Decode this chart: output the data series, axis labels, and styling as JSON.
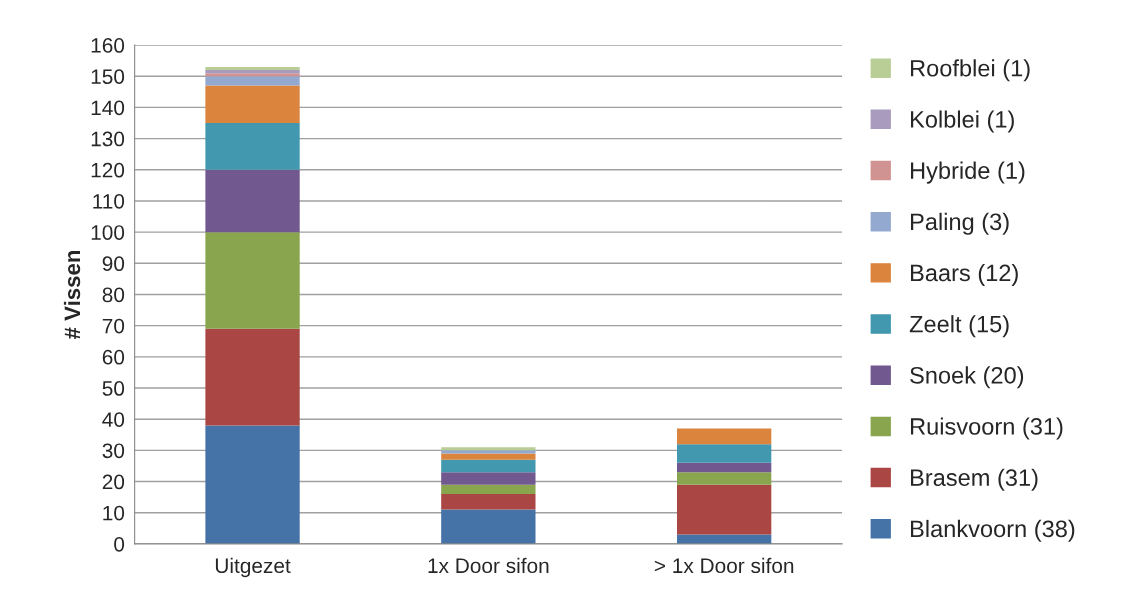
{
  "chart_data": {
    "type": "bar",
    "stacked": true,
    "ylabel": "# Vissen",
    "categories": [
      "Uitgezet",
      "1x Door sifon",
      "> 1x Door sifon"
    ],
    "series": [
      {
        "name": "Blankvoorn (38)",
        "color": "#4572a7",
        "values": [
          38,
          11,
          3
        ]
      },
      {
        "name": "Brasem (31)",
        "color": "#aa4643",
        "values": [
          31,
          5,
          16
        ]
      },
      {
        "name": "Ruisvoorn (31)",
        "color": "#89a54e",
        "values": [
          31,
          3,
          4
        ]
      },
      {
        "name": "Snoek (20)",
        "color": "#71588f",
        "values": [
          20,
          4,
          3
        ]
      },
      {
        "name": "Zeelt (15)",
        "color": "#4198af",
        "values": [
          15,
          4,
          6
        ]
      },
      {
        "name": "Baars (12)",
        "color": "#db843d",
        "values": [
          12,
          2,
          5
        ]
      },
      {
        "name": "Paling (3)",
        "color": "#93a9cf",
        "values": [
          3,
          1,
          0
        ]
      },
      {
        "name": "Hybride (1)",
        "color": "#d19392",
        "values": [
          1,
          0,
          0
        ]
      },
      {
        "name": "Kolblei (1)",
        "color": "#a99bbd",
        "values": [
          1,
          0,
          0
        ]
      },
      {
        "name": "Roofblei (1)",
        "color": "#b9cd96",
        "values": [
          1,
          1,
          0
        ]
      }
    ],
    "ylim": [
      0,
      160
    ],
    "yticks": [
      0,
      10,
      20,
      30,
      40,
      50,
      60,
      70,
      80,
      90,
      100,
      110,
      120,
      130,
      140,
      150,
      160
    ],
    "grid": "y",
    "legend": "right"
  }
}
